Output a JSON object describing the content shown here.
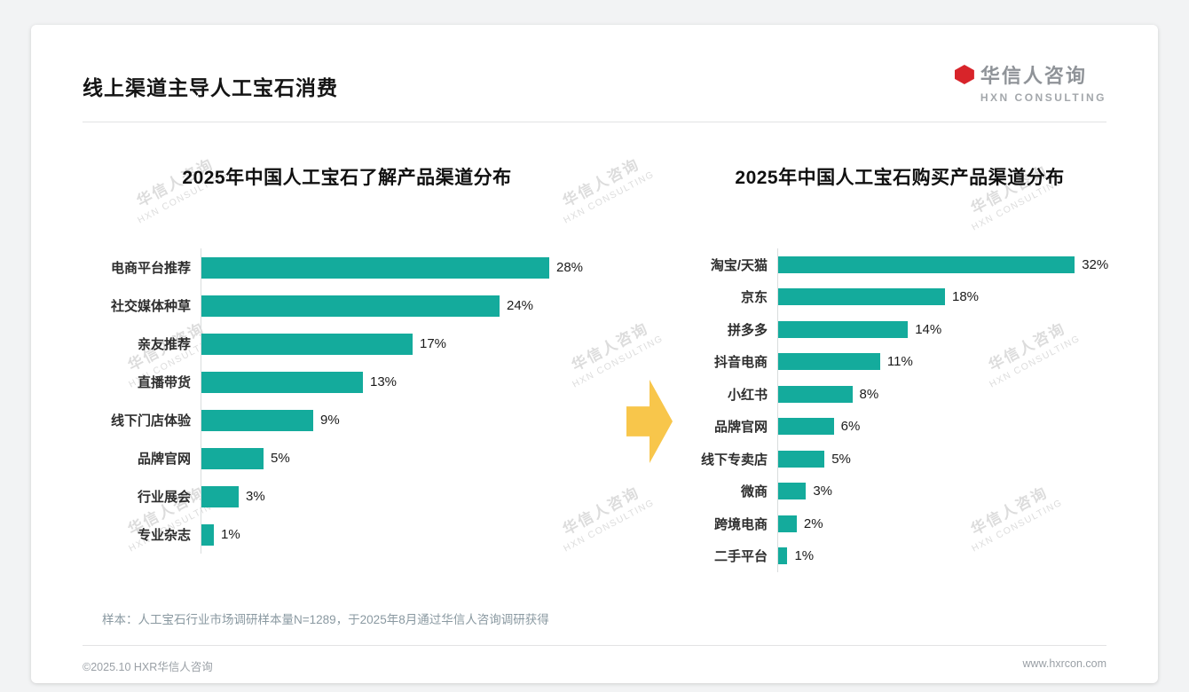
{
  "page": {
    "header": {
      "title": "线上渠道主导人工宝石消费"
    },
    "logo": {
      "cn": "华信人咨询",
      "en": "HXN CONSULTING"
    },
    "note": "样本：人工宝石行业市场调研样本量N=1289，于2025年8月通过华信人咨询调研获得",
    "footer": {
      "left": "©2025.10 HXR华信人咨询",
      "right": "www.hxrcon.com"
    },
    "watermark": {
      "line1": "华信人咨询",
      "line2": "HXN CONSULTING"
    }
  },
  "colors": {
    "bar": "#14AB9C",
    "arrow": "#F8C64B",
    "logo_red": "#D8242A"
  },
  "chart_data": [
    {
      "type": "bar",
      "orientation": "horizontal",
      "title": "2025年中国人工宝石了解产品渠道分布",
      "categories": [
        "电商平台推荐",
        "社交媒体种草",
        "亲友推荐",
        "直播带货",
        "线下门店体验",
        "品牌官网",
        "行业展会",
        "专业杂志"
      ],
      "values": [
        28,
        24,
        17,
        13,
        9,
        5,
        3,
        1
      ],
      "unit": "%",
      "xlim": [
        0,
        33
      ],
      "grid": false,
      "legend": "none"
    },
    {
      "type": "bar",
      "orientation": "horizontal",
      "title": "2025年中国人工宝石购买产品渠道分布",
      "categories": [
        "淘宝/天猫",
        "京东",
        "拼多多",
        "抖音电商",
        "小红书",
        "品牌官网",
        "线下专卖店",
        "微商",
        "跨境电商",
        "二手平台"
      ],
      "values": [
        32,
        18,
        14,
        11,
        8,
        6,
        5,
        3,
        2,
        1
      ],
      "unit": "%",
      "xlim": [
        0,
        36
      ],
      "grid": false,
      "legend": "none"
    }
  ]
}
